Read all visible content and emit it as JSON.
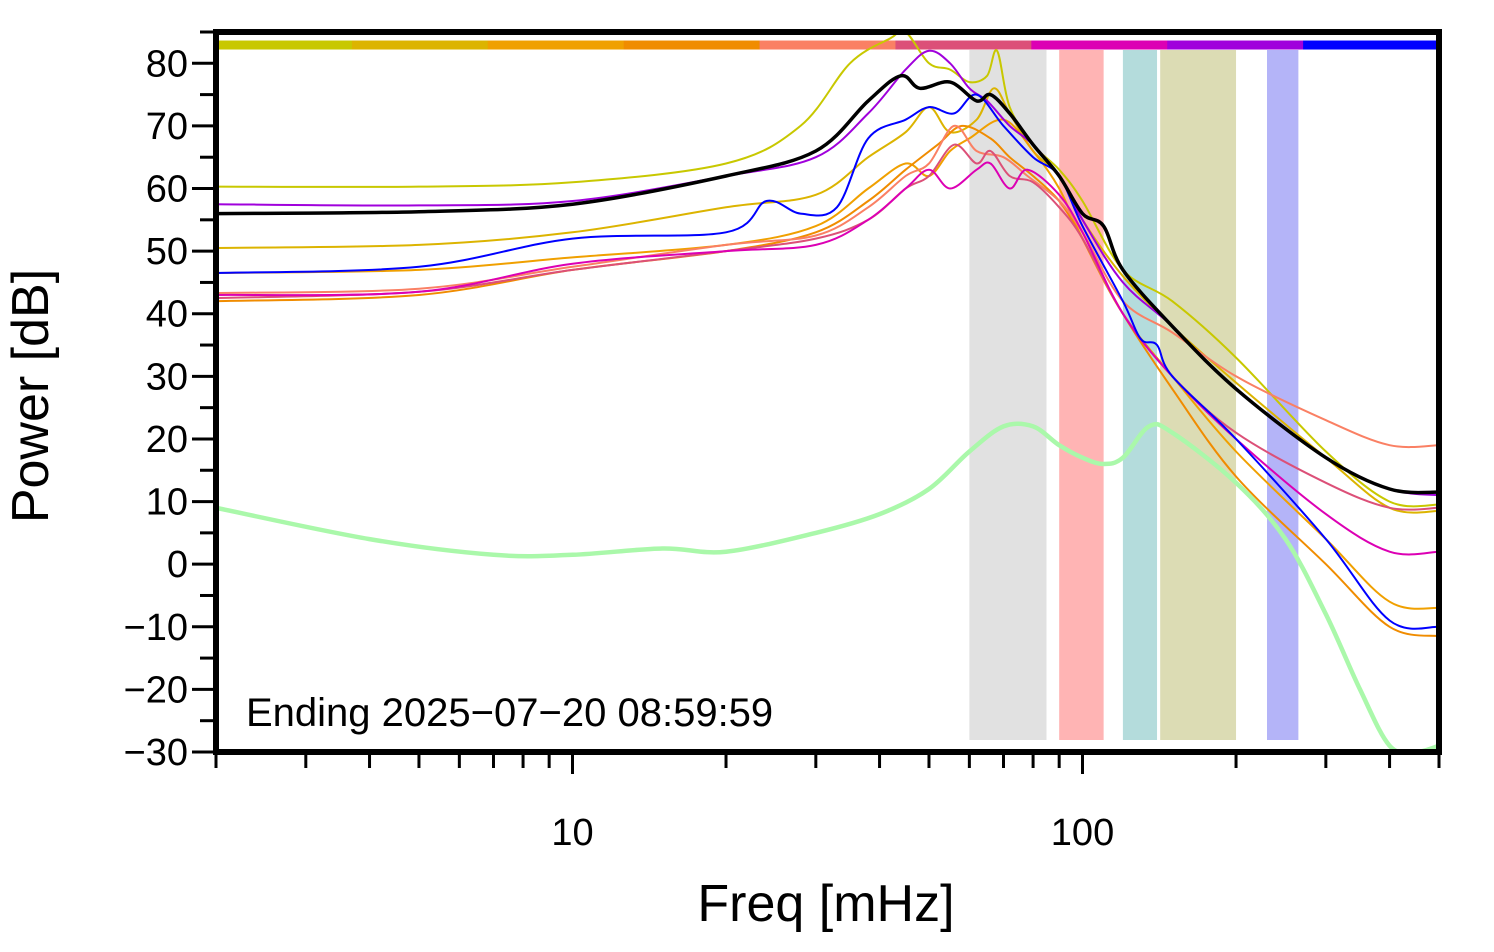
{
  "chart_data": {
    "type": "line",
    "xlabel": "Freq [mHz]",
    "ylabel": "Power [dB]",
    "xscale": "log",
    "xlim": [
      2,
      500
    ],
    "ylim": [
      -30,
      85
    ],
    "xtick_labels": [
      "10",
      "100"
    ],
    "ytick_labels": [
      "80",
      "70",
      "60",
      "50",
      "40",
      "30",
      "20",
      "10",
      "0",
      "−10",
      "−20",
      "−30"
    ],
    "annotation": "Ending 2025−07−20 08:59:59",
    "grid": false,
    "legend": "none",
    "time_bar": {
      "y_level": 83,
      "colors": [
        "#c8c800",
        "#dcb400",
        "#f0a000",
        "#f08c00",
        "#fa8064",
        "#dc5078",
        "#dc00b4",
        "#a000dc",
        "#0000ff"
      ]
    },
    "bands": [
      {
        "x0": 60,
        "x1": 85,
        "color": "#e1e1e1"
      },
      {
        "x0": 90,
        "x1": 110,
        "color": "#ffb4b4"
      },
      {
        "x0": 120,
        "x1": 140,
        "color": "#b4dcdc"
      },
      {
        "x0": 142,
        "x1": 200,
        "color": "#dcdcb4"
      },
      {
        "x0": 230,
        "x1": 265,
        "color": "#b4b4f8"
      }
    ],
    "series": [
      {
        "color": "#c8c800",
        "width": 2,
        "points": [
          [
            2,
            60.3
          ],
          [
            5,
            60.3
          ],
          [
            10,
            61
          ],
          [
            20,
            64
          ],
          [
            28,
            70
          ],
          [
            35,
            80
          ],
          [
            42,
            84
          ],
          [
            45,
            85
          ],
          [
            50,
            80
          ],
          [
            55,
            79
          ],
          [
            60,
            77
          ],
          [
            65,
            78
          ],
          [
            68,
            82
          ],
          [
            72,
            73
          ],
          [
            80,
            67
          ],
          [
            90,
            63
          ],
          [
            100,
            58
          ],
          [
            120,
            47
          ],
          [
            150,
            42
          ],
          [
            200,
            33
          ],
          [
            300,
            18
          ],
          [
            400,
            10
          ],
          [
            500,
            9.5
          ]
        ]
      },
      {
        "color": "#dcb400",
        "width": 2,
        "points": [
          [
            2,
            50.5
          ],
          [
            5,
            51
          ],
          [
            10,
            53
          ],
          [
            20,
            57
          ],
          [
            30,
            59
          ],
          [
            38,
            65
          ],
          [
            45,
            69
          ],
          [
            50,
            73
          ],
          [
            55,
            69
          ],
          [
            62,
            71
          ],
          [
            67,
            76
          ],
          [
            72,
            72
          ],
          [
            80,
            66
          ],
          [
            90,
            62
          ],
          [
            100,
            55
          ],
          [
            120,
            46
          ],
          [
            150,
            38
          ],
          [
            200,
            29
          ],
          [
            300,
            17
          ],
          [
            400,
            9
          ],
          [
            500,
            8.5
          ]
        ]
      },
      {
        "color": "#f0a000",
        "width": 2,
        "points": [
          [
            2,
            46.5
          ],
          [
            5,
            47
          ],
          [
            10,
            49
          ],
          [
            20,
            51
          ],
          [
            30,
            54
          ],
          [
            38,
            60
          ],
          [
            45,
            64
          ],
          [
            50,
            62
          ],
          [
            55,
            66
          ],
          [
            60,
            68
          ],
          [
            70,
            71
          ],
          [
            80,
            66
          ],
          [
            90,
            60
          ],
          [
            100,
            52
          ],
          [
            120,
            40
          ],
          [
            150,
            30
          ],
          [
            200,
            18
          ],
          [
            300,
            4
          ],
          [
            400,
            -6
          ],
          [
            500,
            -7
          ]
        ]
      },
      {
        "color": "#f08c00",
        "width": 2,
        "points": [
          [
            2,
            42
          ],
          [
            5,
            43
          ],
          [
            10,
            47
          ],
          [
            20,
            50
          ],
          [
            30,
            53
          ],
          [
            38,
            58
          ],
          [
            45,
            63
          ],
          [
            52,
            67
          ],
          [
            58,
            70
          ],
          [
            66,
            68
          ],
          [
            72,
            65
          ],
          [
            80,
            62
          ],
          [
            90,
            58
          ],
          [
            100,
            52
          ],
          [
            120,
            40
          ],
          [
            150,
            28
          ],
          [
            200,
            14
          ],
          [
            300,
            0
          ],
          [
            400,
            -10
          ],
          [
            500,
            -11.5
          ]
        ]
      },
      {
        "color": "#fa8064",
        "width": 2,
        "points": [
          [
            2,
            43.3
          ],
          [
            5,
            44
          ],
          [
            10,
            47.5
          ],
          [
            20,
            51
          ],
          [
            30,
            52.5
          ],
          [
            38,
            57
          ],
          [
            45,
            62
          ],
          [
            50,
            64
          ],
          [
            56,
            70
          ],
          [
            62,
            66
          ],
          [
            70,
            65
          ],
          [
            78,
            62
          ],
          [
            90,
            58
          ],
          [
            100,
            53
          ],
          [
            120,
            42
          ],
          [
            150,
            37
          ],
          [
            200,
            30
          ],
          [
            300,
            23
          ],
          [
            400,
            19
          ],
          [
            500,
            19
          ]
        ]
      },
      {
        "color": "#dc5078",
        "width": 2,
        "points": [
          [
            2,
            42.5
          ],
          [
            5,
            43.5
          ],
          [
            10,
            47
          ],
          [
            20,
            50
          ],
          [
            30,
            52
          ],
          [
            38,
            55
          ],
          [
            45,
            60
          ],
          [
            50,
            62
          ],
          [
            56,
            67
          ],
          [
            62,
            64
          ],
          [
            66,
            66
          ],
          [
            72,
            62
          ],
          [
            80,
            61
          ],
          [
            90,
            57
          ],
          [
            100,
            52
          ],
          [
            120,
            40
          ],
          [
            150,
            30
          ],
          [
            200,
            21
          ],
          [
            300,
            13
          ],
          [
            400,
            9
          ],
          [
            500,
            9
          ]
        ]
      },
      {
        "color": "#dc00b4",
        "width": 2,
        "points": [
          [
            2,
            43
          ],
          [
            5,
            43.5
          ],
          [
            10,
            48
          ],
          [
            20,
            50
          ],
          [
            30,
            51
          ],
          [
            38,
            55
          ],
          [
            45,
            60
          ],
          [
            50,
            63
          ],
          [
            55,
            60
          ],
          [
            62,
            63
          ],
          [
            66,
            64
          ],
          [
            72,
            60
          ],
          [
            78,
            63
          ],
          [
            90,
            59
          ],
          [
            100,
            53
          ],
          [
            120,
            40
          ],
          [
            150,
            30
          ],
          [
            200,
            20
          ],
          [
            300,
            8
          ],
          [
            400,
            2
          ],
          [
            500,
            2
          ]
        ]
      },
      {
        "color": "#a000dc",
        "width": 2,
        "points": [
          [
            2,
            57.5
          ],
          [
            5,
            57.3
          ],
          [
            10,
            58
          ],
          [
            20,
            62
          ],
          [
            30,
            65
          ],
          [
            38,
            72
          ],
          [
            45,
            79
          ],
          [
            50,
            82
          ],
          [
            55,
            80
          ],
          [
            60,
            76
          ],
          [
            65,
            74
          ],
          [
            72,
            70
          ],
          [
            80,
            67
          ],
          [
            90,
            62
          ],
          [
            100,
            55
          ],
          [
            120,
            45
          ],
          [
            150,
            38
          ],
          [
            200,
            28
          ],
          [
            300,
            17
          ],
          [
            400,
            12
          ],
          [
            500,
            11
          ]
        ]
      },
      {
        "color": "#0000ff",
        "width": 2,
        "points": [
          [
            2,
            46.5
          ],
          [
            5,
            47.5
          ],
          [
            10,
            52
          ],
          [
            20,
            53
          ],
          [
            24,
            58
          ],
          [
            28,
            56
          ],
          [
            33,
            57
          ],
          [
            38,
            68
          ],
          [
            45,
            71
          ],
          [
            50,
            73
          ],
          [
            56,
            72
          ],
          [
            62,
            75
          ],
          [
            70,
            70
          ],
          [
            80,
            65
          ],
          [
            90,
            62
          ],
          [
            100,
            54
          ],
          [
            120,
            42
          ],
          [
            130,
            36
          ],
          [
            140,
            35
          ],
          [
            150,
            30
          ],
          [
            200,
            20
          ],
          [
            300,
            4
          ],
          [
            400,
            -9
          ],
          [
            500,
            -10
          ]
        ]
      },
      {
        "color": "#000000",
        "width": 3.5,
        "points": [
          [
            2,
            56
          ],
          [
            5,
            56.3
          ],
          [
            10,
            57.5
          ],
          [
            20,
            62
          ],
          [
            30,
            66
          ],
          [
            38,
            74
          ],
          [
            44,
            78
          ],
          [
            48,
            76
          ],
          [
            55,
            77
          ],
          [
            62,
            74
          ],
          [
            66,
            75
          ],
          [
            72,
            72
          ],
          [
            80,
            67
          ],
          [
            90,
            62
          ],
          [
            100,
            56
          ],
          [
            110,
            54
          ],
          [
            120,
            47
          ],
          [
            150,
            38
          ],
          [
            200,
            28
          ],
          [
            300,
            17
          ],
          [
            400,
            12
          ],
          [
            500,
            11.5
          ]
        ]
      },
      {
        "color": "#aaf8aa",
        "width": 4.5,
        "points": [
          [
            2,
            9
          ],
          [
            4,
            4
          ],
          [
            7,
            1.5
          ],
          [
            10,
            1.5
          ],
          [
            15,
            2.5
          ],
          [
            20,
            2
          ],
          [
            30,
            5
          ],
          [
            40,
            8
          ],
          [
            50,
            12
          ],
          [
            60,
            18
          ],
          [
            70,
            22
          ],
          [
            80,
            22
          ],
          [
            90,
            19
          ],
          [
            100,
            17
          ],
          [
            110,
            16
          ],
          [
            120,
            17
          ],
          [
            135,
            22
          ],
          [
            150,
            21
          ],
          [
            200,
            13
          ],
          [
            250,
            4
          ],
          [
            300,
            -8
          ],
          [
            350,
            -20
          ],
          [
            400,
            -29
          ],
          [
            450,
            -30
          ],
          [
            500,
            -29
          ]
        ]
      }
    ]
  }
}
